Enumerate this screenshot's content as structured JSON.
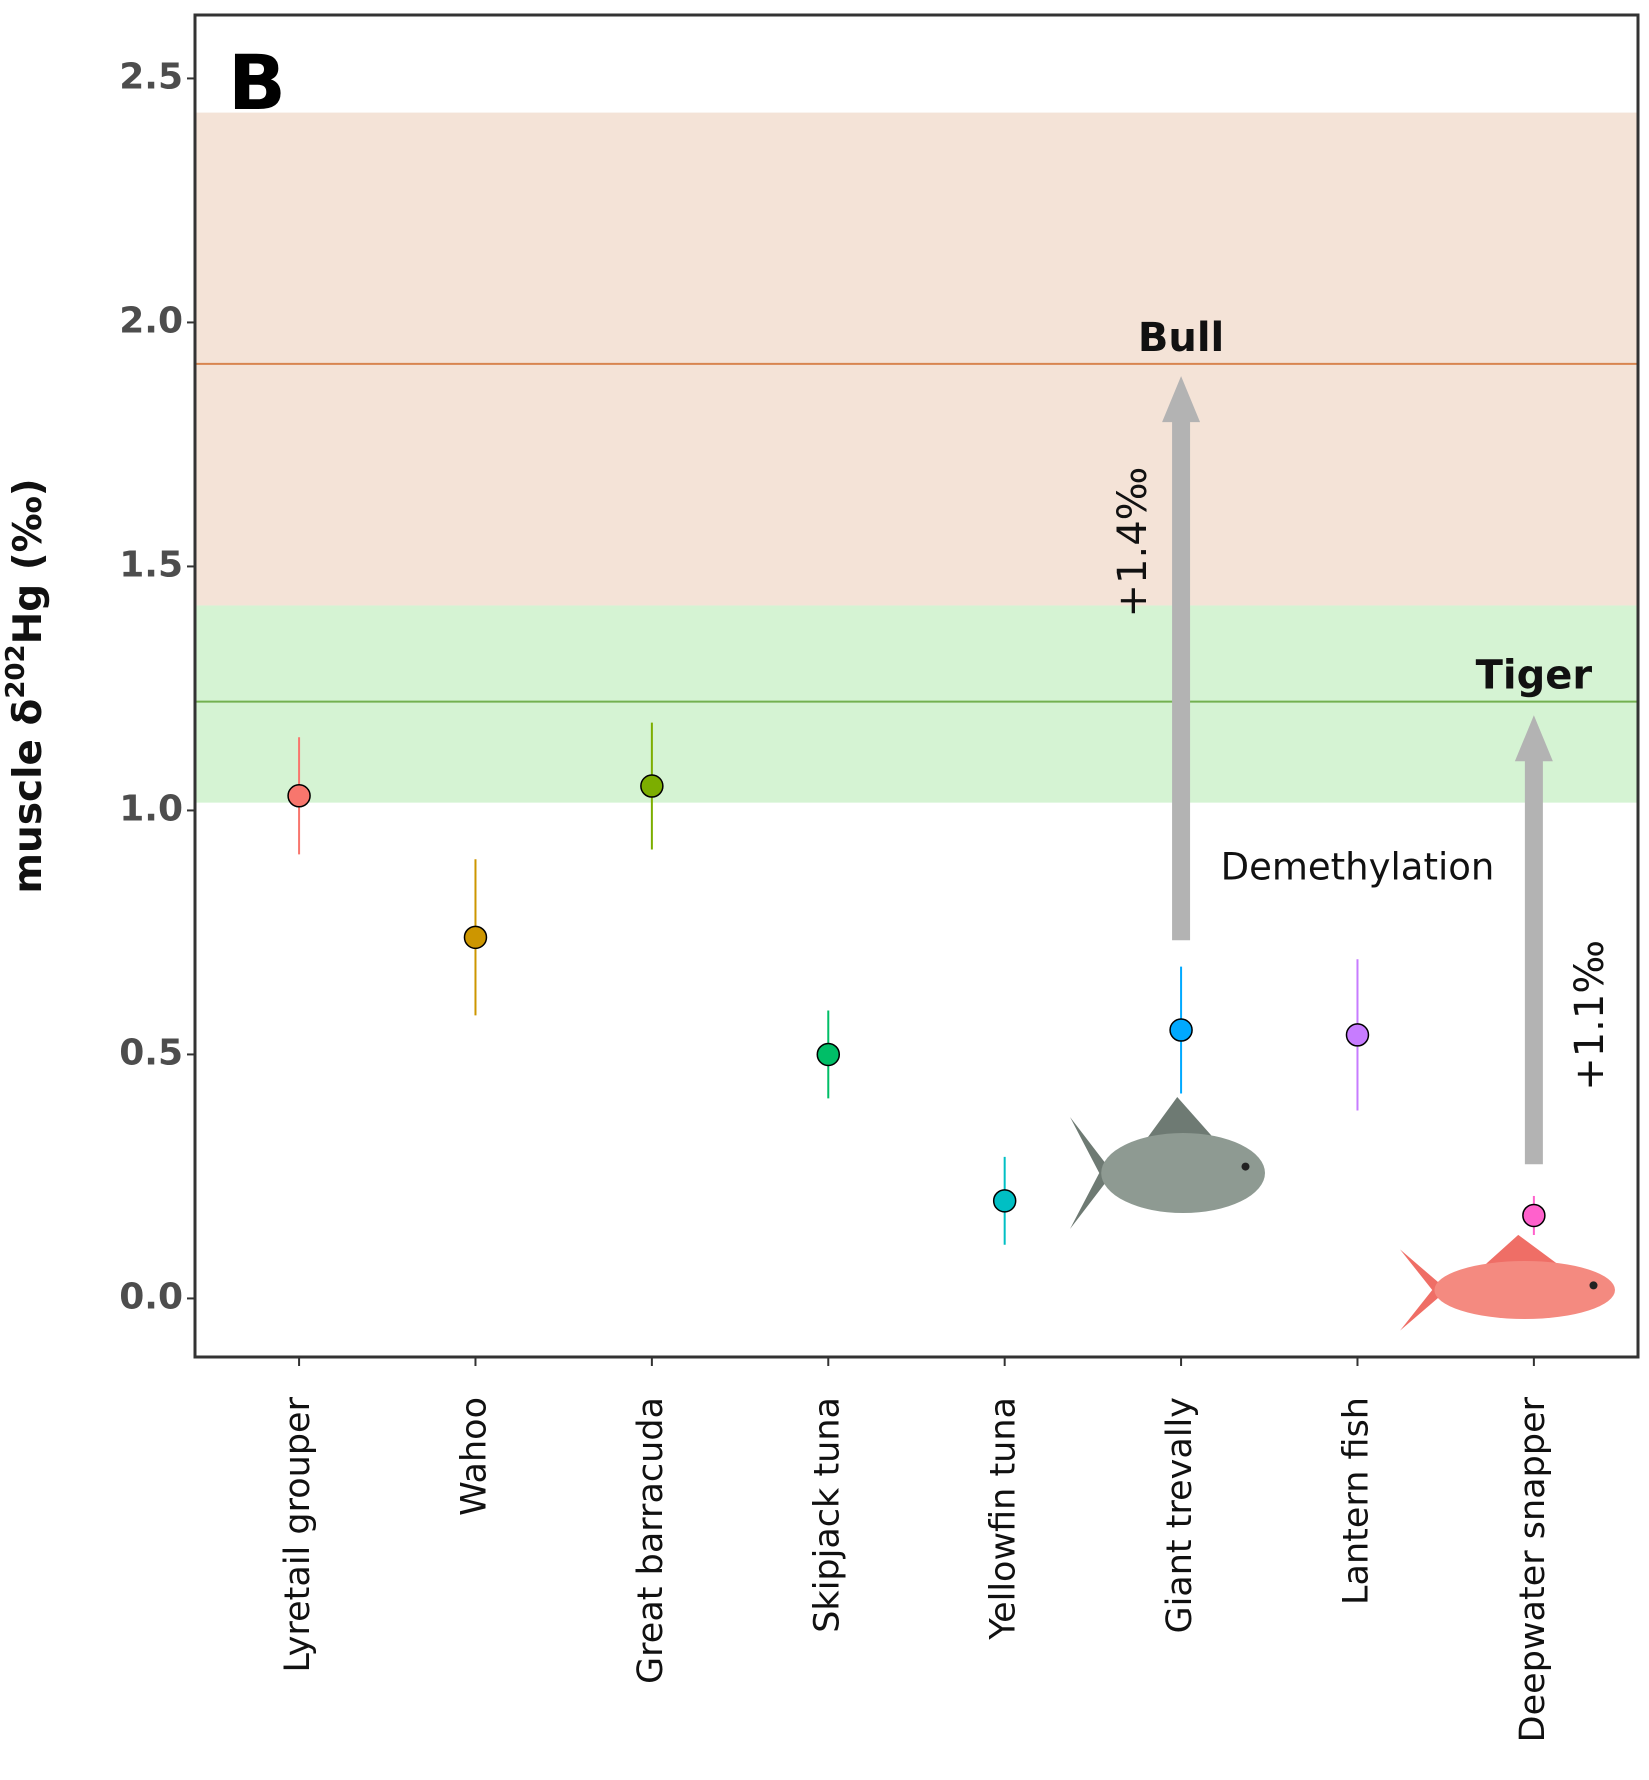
{
  "chart_data": {
    "type": "errorbar",
    "panel_label": "B",
    "ylabel": [
      "muscle δ",
      "202",
      "Hg  (‰)"
    ],
    "categories": [
      "Lyretail grouper",
      "Wahoo",
      "Great barracuda",
      "Skipjack tuna",
      "Yellowfin tuna",
      "Giant trevally",
      "Lantern fish",
      "Deepwater snapper"
    ],
    "values": [
      1.03,
      0.74,
      1.05,
      0.5,
      0.2,
      0.55,
      0.54,
      0.17
    ],
    "errors": [
      0.12,
      0.16,
      0.13,
      0.09,
      0.09,
      0.13,
      0.155,
      0.04
    ],
    "colors": [
      "#f8766d",
      "#cd9600",
      "#7cae00",
      "#00be67",
      "#00bfc4",
      "#00a9ff",
      "#c77cff",
      "#ff61cc"
    ],
    "ylim": [
      -0.12,
      2.63
    ],
    "yticks": [
      {
        "value": 0,
        "label": "0.0"
      },
      0.5,
      {
        "value": 1,
        "label": "1.0"
      },
      1.5,
      {
        "value": 2,
        "label": "2.0"
      },
      2.5
    ],
    "bands": [
      {
        "name": "Bull",
        "range": [
          1.42,
          2.43
        ],
        "line": 1.915,
        "color": "#f4e3d7",
        "line_color": "#d8854f"
      },
      {
        "name": "Tiger",
        "range": [
          1.016,
          1.42
        ],
        "line": 1.223,
        "color": "#d5f3d3",
        "line_color": "#73b050"
      }
    ],
    "arrows": [
      {
        "label": "+1.4‰",
        "from": 0.734,
        "to": 1.89
      },
      {
        "label": "+1.1‰",
        "from": 0.275,
        "to": 1.195
      }
    ],
    "annotation": "Demethylation"
  }
}
